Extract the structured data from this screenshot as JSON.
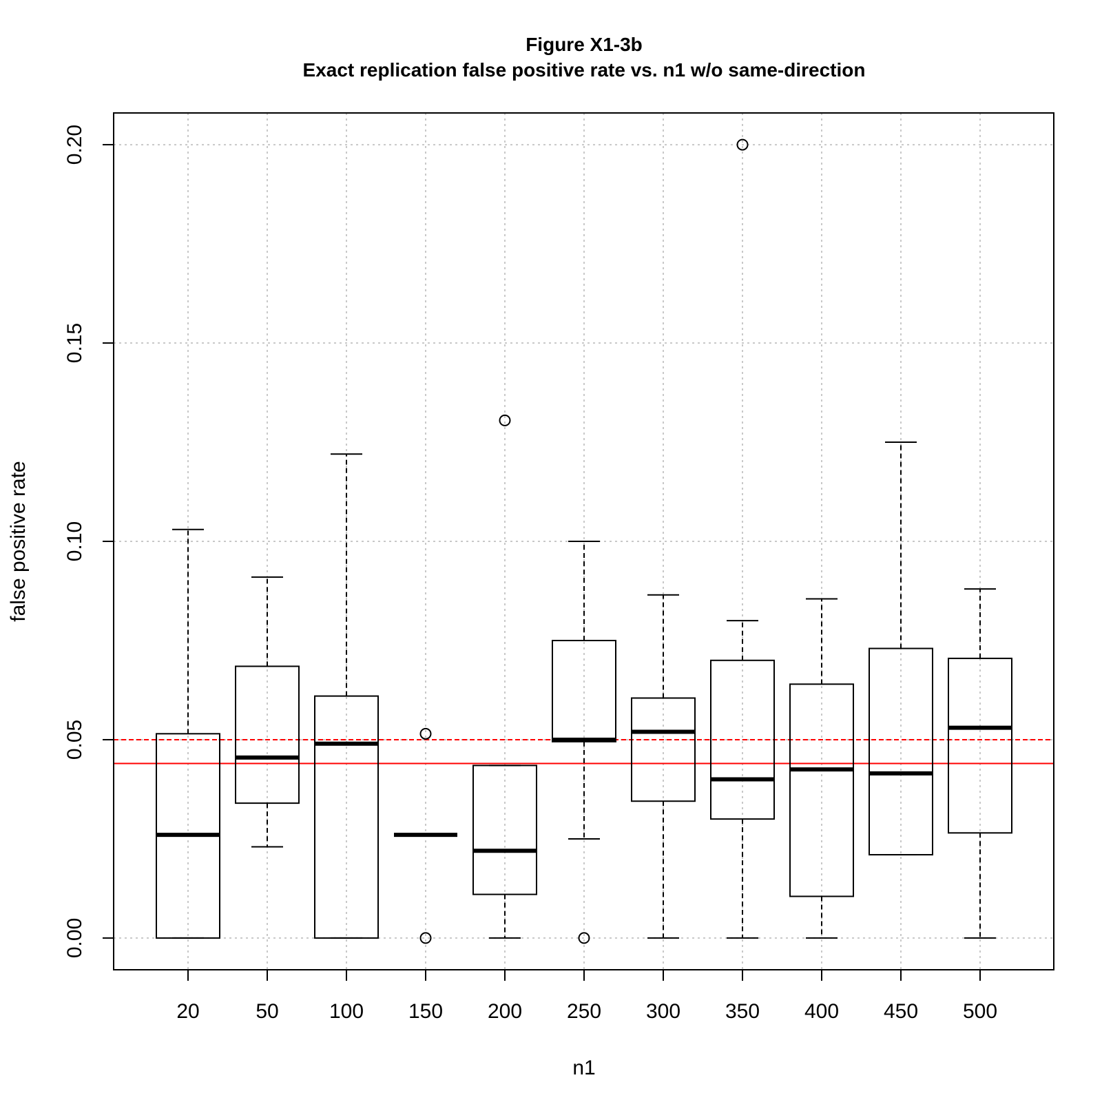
{
  "chart_data": {
    "type": "box",
    "title": "Figure X1-3b",
    "subtitle": "Exact replication false positive rate vs. n1 w/o same-direction",
    "xlabel": "n1",
    "ylabel": "false positive rate",
    "categories": [
      "20",
      "50",
      "100",
      "150",
      "200",
      "250",
      "300",
      "350",
      "400",
      "450",
      "500"
    ],
    "ylim": [
      -0.008,
      0.208
    ],
    "yticks": [
      0.0,
      0.05,
      0.1,
      0.15,
      0.2
    ],
    "ytick_labels": [
      "0.00",
      "0.05",
      "0.10",
      "0.15",
      "0.20"
    ],
    "grid": true,
    "boxes": [
      {
        "label": "20",
        "whisker_low": 0.0,
        "q1": 0.0,
        "median": 0.026,
        "q3": 0.0515,
        "whisker_high": 0.103,
        "outliers": []
      },
      {
        "label": "50",
        "whisker_low": 0.023,
        "q1": 0.034,
        "median": 0.0455,
        "q3": 0.0685,
        "whisker_high": 0.091,
        "outliers": []
      },
      {
        "label": "100",
        "whisker_low": 0.0,
        "q1": 0.0,
        "median": 0.049,
        "q3": 0.061,
        "whisker_high": 0.122,
        "outliers": []
      },
      {
        "label": "150",
        "whisker_low": 0.026,
        "q1": 0.026,
        "median": 0.026,
        "q3": 0.026,
        "whisker_high": 0.026,
        "outliers": [
          0.0515,
          0.0
        ]
      },
      {
        "label": "200",
        "whisker_low": 0.0,
        "q1": 0.011,
        "median": 0.022,
        "q3": 0.0435,
        "whisker_high": 0.0435,
        "outliers": [
          0.1305
        ]
      },
      {
        "label": "250",
        "whisker_low": 0.025,
        "q1": 0.0495,
        "median": 0.05,
        "q3": 0.075,
        "whisker_high": 0.1,
        "outliers": [
          0.0
        ]
      },
      {
        "label": "300",
        "whisker_low": 0.0,
        "q1": 0.0345,
        "median": 0.052,
        "q3": 0.0605,
        "whisker_high": 0.0865,
        "outliers": []
      },
      {
        "label": "350",
        "whisker_low": 0.0,
        "q1": 0.03,
        "median": 0.04,
        "q3": 0.07,
        "whisker_high": 0.08,
        "outliers": [
          0.2
        ]
      },
      {
        "label": "400",
        "whisker_low": 0.0,
        "q1": 0.0105,
        "median": 0.0425,
        "q3": 0.064,
        "whisker_high": 0.0855,
        "outliers": []
      },
      {
        "label": "450",
        "whisker_low": 0.021,
        "q1": 0.021,
        "median": 0.0415,
        "q3": 0.073,
        "whisker_high": 0.125,
        "outliers": []
      },
      {
        "label": "500",
        "whisker_low": 0.0,
        "q1": 0.0265,
        "median": 0.053,
        "q3": 0.0705,
        "whisker_high": 0.088,
        "outliers": []
      }
    ],
    "reference_lines": [
      {
        "y": 0.05,
        "style": "dashed",
        "color": "#ff0000"
      },
      {
        "y": 0.044,
        "style": "solid",
        "color": "#ff0000"
      }
    ]
  }
}
